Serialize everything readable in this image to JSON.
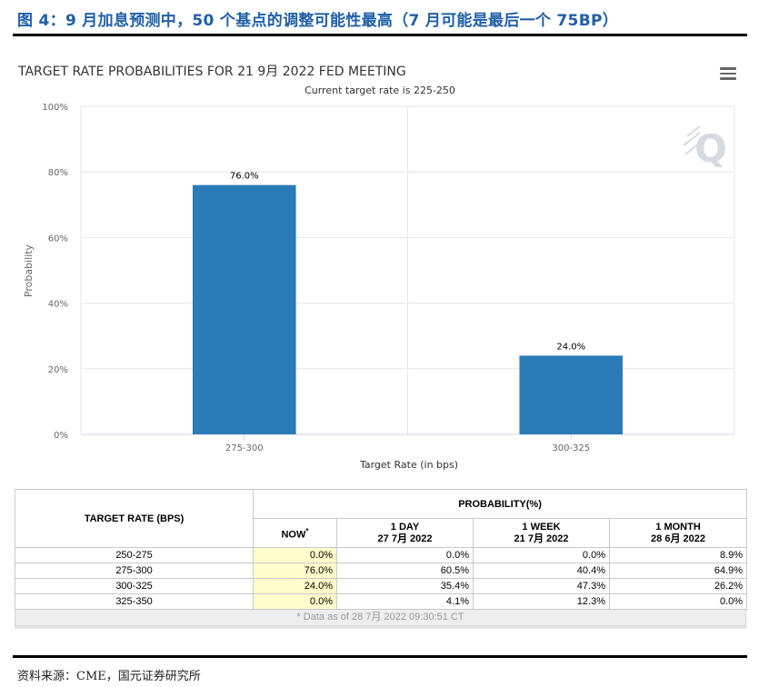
{
  "figure": {
    "title": "图 4：9 月加息预测中，50 个基点的调整可能性最高（7 月可能是最后一个 75BP）",
    "source": "资料来源：CME，国元证券研究所"
  },
  "chart_data": {
    "type": "bar",
    "title": "TARGET RATE PROBABILITIES FOR 21 9月 2022 FED MEETING",
    "subtitle": "Current target rate is 225-250",
    "categories": [
      "275-300",
      "300-325"
    ],
    "values": [
      76.0,
      24.0
    ],
    "value_labels": [
      "76.0%",
      "24.0%"
    ],
    "xlabel": "Target Rate (in bps)",
    "ylabel": "Probability",
    "ylim": [
      0,
      100
    ],
    "yticks": [
      0,
      20,
      40,
      60,
      80,
      100
    ],
    "ytick_labels": [
      "0%",
      "20%",
      "40%",
      "60%",
      "80%",
      "100%"
    ],
    "bar_color": "#2b7bb9",
    "grid": true,
    "watermark": "Q"
  },
  "table": {
    "col_rate_header": "TARGET RATE (BPS)",
    "col_prob_header": "PROBABILITY(%)",
    "sub_headers": [
      {
        "line1": "NOW",
        "sup": "*",
        "line2": ""
      },
      {
        "line1": "1 DAY",
        "line2": "27 7月 2022"
      },
      {
        "line1": "1 WEEK",
        "line2": "21 7月 2022"
      },
      {
        "line1": "1 MONTH",
        "line2": "28 6月 2022"
      }
    ],
    "rows": [
      {
        "rate": "250-275",
        "now": "0.0%",
        "day": "0.0%",
        "week": "0.0%",
        "month": "8.9%"
      },
      {
        "rate": "275-300",
        "now": "76.0%",
        "day": "60.5%",
        "week": "40.4%",
        "month": "64.9%"
      },
      {
        "rate": "300-325",
        "now": "24.0%",
        "day": "35.4%",
        "week": "47.3%",
        "month": "26.2%"
      },
      {
        "rate": "325-350",
        "now": "0.0%",
        "day": "4.1%",
        "week": "12.3%",
        "month": "0.0%"
      }
    ],
    "footnote": "* Data as of 28 7月 2022 09:30:51 CT"
  },
  "icons": {
    "menu": "hamburger-menu-icon"
  }
}
